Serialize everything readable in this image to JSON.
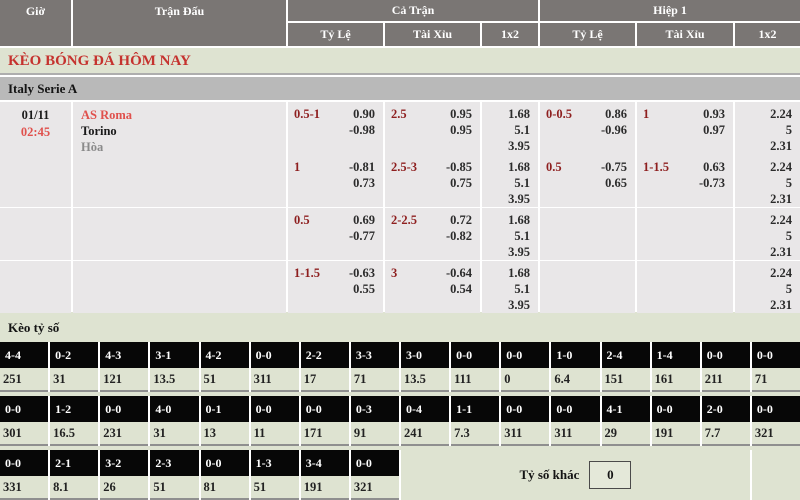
{
  "colors": {
    "header_bg": "#7a7674",
    "accent_red": "#c5322e",
    "team_red": "#e0514d",
    "handicap_red": "#8e1f1f",
    "row_bg": "#e9e7e8",
    "section_bg": "#dee3d1",
    "league_bg": "#b9b9b9",
    "score_box_bg": "#070707"
  },
  "table": {
    "headers": {
      "gio": "Giờ",
      "tran_dau": "Trận Đấu",
      "ca_tran": "Cả Trận",
      "hiep_1": "Hiệp 1",
      "ty_le": "Tỷ Lệ",
      "tai_xiu": "Tài Xỉu",
      "x12": "1x2"
    },
    "section_title": "KÈO BÓNG ĐÁ HÔM NAY",
    "league": "Italy Serie A",
    "match": {
      "date": "01/11",
      "time": "02:45",
      "home": "AS Roma",
      "away": "Torino",
      "draw": "Hòa"
    },
    "rows": [
      {
        "ft": {
          "hdp": {
            "line": "0.5-1",
            "o1": "0.90",
            "o2": "-0.98"
          },
          "ou": {
            "line": "2.5",
            "o1": "0.95",
            "o2": "0.95"
          },
          "x12": [
            "1.68",
            "5.1",
            "3.95"
          ]
        },
        "h1": {
          "hdp": {
            "line": "0-0.5",
            "o1": "0.86",
            "o2": "-0.96"
          },
          "ou": {
            "line": "1",
            "o1": "0.93",
            "o2": "0.97"
          },
          "x12": [
            "2.24",
            "5",
            "2.31"
          ]
        }
      },
      {
        "ft": {
          "hdp": {
            "line": "1",
            "o1": "-0.81",
            "o2": "0.73"
          },
          "ou": {
            "line": "2.5-3",
            "o1": "-0.85",
            "o2": "0.75"
          },
          "x12": [
            "1.68",
            "5.1",
            "3.95"
          ]
        },
        "h1": {
          "hdp": {
            "line": "0.5",
            "o1": "-0.75",
            "o2": "0.65"
          },
          "ou": {
            "line": "1-1.5",
            "o1": "0.63",
            "o2": "-0.73"
          },
          "x12": [
            "2.24",
            "5",
            "2.31"
          ]
        }
      },
      {
        "ft": {
          "hdp": {
            "line": "0.5",
            "o1": "0.69",
            "o2": "-0.77"
          },
          "ou": {
            "line": "2-2.5",
            "o1": "0.72",
            "o2": "-0.82"
          },
          "x12": [
            "1.68",
            "5.1",
            "3.95"
          ]
        },
        "h1": {
          "x12": [
            "2.24",
            "5",
            "2.31"
          ]
        }
      },
      {
        "ft": {
          "hdp": {
            "line": "1-1.5",
            "o1": "-0.63",
            "o2": "0.55"
          },
          "ou": {
            "line": "3",
            "o1": "-0.64",
            "o2": "0.54"
          },
          "x12": [
            "1.68",
            "5.1",
            "3.95"
          ]
        },
        "h1": {
          "x12": [
            "2.24",
            "5",
            "2.31"
          ]
        }
      }
    ]
  },
  "scores": {
    "title": "Kèo tỷ số",
    "rows": [
      [
        {
          "score": "4-4",
          "odds": "251"
        },
        {
          "score": "0-2",
          "odds": "31"
        },
        {
          "score": "4-3",
          "odds": "121"
        },
        {
          "score": "3-1",
          "odds": "13.5"
        },
        {
          "score": "4-2",
          "odds": "51"
        },
        {
          "score": "0-0",
          "odds": "311"
        },
        {
          "score": "2-2",
          "odds": "17"
        },
        {
          "score": "3-3",
          "odds": "71"
        },
        {
          "score": "3-0",
          "odds": "13.5"
        },
        {
          "score": "0-0",
          "odds": "111"
        },
        {
          "score": "0-0",
          "odds": "0"
        },
        {
          "score": "1-0",
          "odds": "6.4"
        },
        {
          "score": "2-4",
          "odds": "151"
        },
        {
          "score": "1-4",
          "odds": "161"
        },
        {
          "score": "0-0",
          "odds": "211"
        },
        {
          "score": "0-0",
          "odds": "71"
        }
      ],
      [
        {
          "score": "0-0",
          "odds": "301"
        },
        {
          "score": "1-2",
          "odds": "16.5"
        },
        {
          "score": "0-0",
          "odds": "231"
        },
        {
          "score": "4-0",
          "odds": "31"
        },
        {
          "score": "0-1",
          "odds": "13"
        },
        {
          "score": "0-0",
          "odds": "11"
        },
        {
          "score": "0-0",
          "odds": "171"
        },
        {
          "score": "0-3",
          "odds": "91"
        },
        {
          "score": "0-4",
          "odds": "241"
        },
        {
          "score": "1-1",
          "odds": "7.3"
        },
        {
          "score": "0-0",
          "odds": "311"
        },
        {
          "score": "0-0",
          "odds": "311"
        },
        {
          "score": "4-1",
          "odds": "29"
        },
        {
          "score": "0-0",
          "odds": "191"
        },
        {
          "score": "2-0",
          "odds": "7.7"
        },
        {
          "score": "0-0",
          "odds": "321"
        }
      ],
      [
        {
          "score": "0-0",
          "odds": "331"
        },
        {
          "score": "2-1",
          "odds": "8.1"
        },
        {
          "score": "3-2",
          "odds": "26"
        },
        {
          "score": "2-3",
          "odds": "51"
        },
        {
          "score": "0-0",
          "odds": "81"
        },
        {
          "score": "1-3",
          "odds": "51"
        },
        {
          "score": "3-4",
          "odds": "191"
        },
        {
          "score": "0-0",
          "odds": "321"
        }
      ]
    ],
    "other": {
      "label": "Tỷ số khác",
      "value": "0"
    }
  }
}
